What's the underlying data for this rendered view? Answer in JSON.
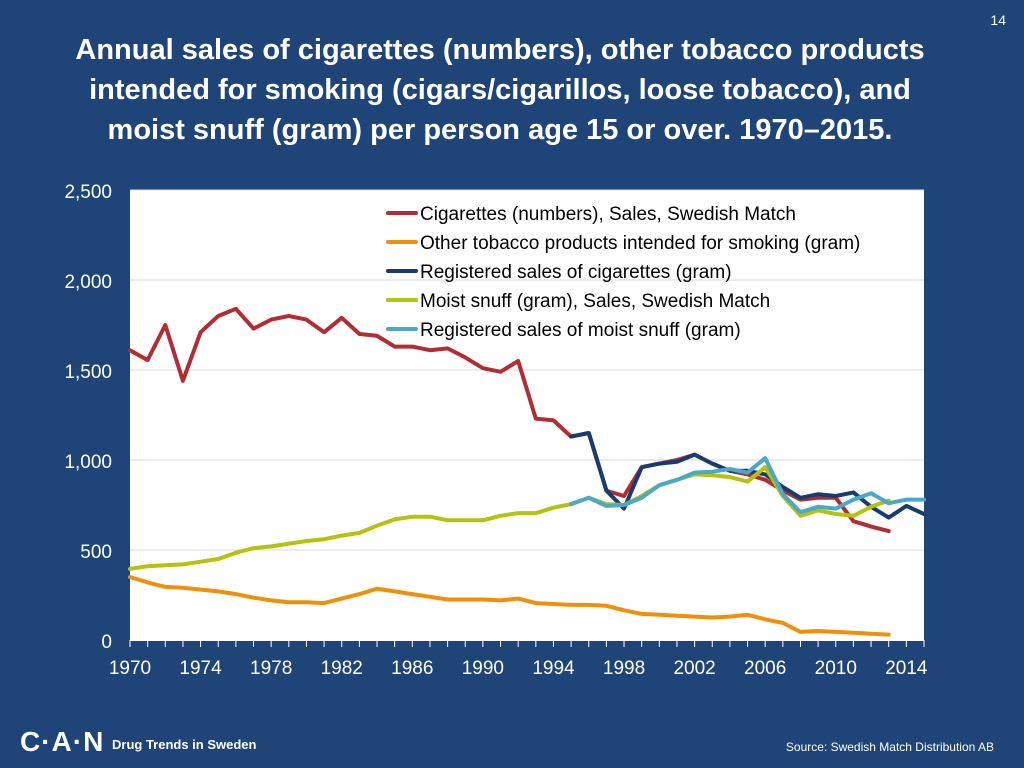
{
  "page_number": "14",
  "title_lines": [
    "Annual sales of cigarettes (numbers), other tobacco products",
    "intended for smoking (cigars/cigarillos, loose tobacco), and",
    "moist snuff (gram) per person age 15 or over. 1970–2015."
  ],
  "footer": {
    "logo": "C·A·N",
    "tagline": "Drug Trends in Sweden",
    "source": "Source: Swedish Match Distribution AB"
  },
  "colors": {
    "background": "#1f4578",
    "plot": "#ffffff",
    "cigarettes_sales": "#b22d33",
    "other_tobacco": "#f0900a",
    "registered_cigarettes": "#173d6e",
    "moist_snuff_sales": "#b5c20e",
    "registered_snuff": "#4aa8c8"
  },
  "chart_data": {
    "type": "line",
    "title": "Annual sales of cigarettes (numbers), other tobacco products intended for smoking (cigars/cigarillos, loose tobacco), and moist snuff (gram) per person age 15 or over. 1970–2015.",
    "xlabel": "",
    "ylabel": "",
    "xlim": [
      1970,
      2015
    ],
    "ylim": [
      0,
      2500
    ],
    "y_ticks": [
      0,
      500,
      1000,
      1500,
      2000,
      2500
    ],
    "y_tick_labels": [
      "0",
      "500",
      "1,000",
      "1,500",
      "2,000",
      "2,500"
    ],
    "x_ticks": [
      1970,
      1974,
      1978,
      1982,
      1986,
      1990,
      1994,
      1998,
      2002,
      2006,
      2010,
      2014
    ],
    "x_tick_labels": [
      "1970",
      "1974",
      "1978",
      "1982",
      "1986",
      "1990",
      "1994",
      "1998",
      "2002",
      "2006",
      "2010",
      "2014"
    ],
    "grid": "horizontal",
    "legend_position": "top-right",
    "series": [
      {
        "key": "cigarettes_sales",
        "name": "Cigarettes (numbers), Sales, Swedish Match",
        "x": [
          1970,
          1971,
          1972,
          1973,
          1974,
          1975,
          1976,
          1977,
          1978,
          1979,
          1980,
          1981,
          1982,
          1983,
          1984,
          1985,
          1986,
          1987,
          1988,
          1989,
          1990,
          1991,
          1992,
          1993,
          1994,
          1995,
          1996,
          1997,
          1998,
          1999,
          2000,
          2001,
          2002,
          2003,
          2004,
          2005,
          2006,
          2007,
          2008,
          2009,
          2010,
          2011,
          2012,
          2013
        ],
        "values": [
          1610,
          1555,
          1750,
          1440,
          1710,
          1800,
          1840,
          1730,
          1780,
          1800,
          1780,
          1710,
          1790,
          1700,
          1690,
          1630,
          1630,
          1610,
          1620,
          1570,
          1510,
          1490,
          1550,
          1230,
          1220,
          1130,
          1150,
          830,
          800,
          960,
          980,
          1000,
          1030,
          980,
          940,
          920,
          890,
          830,
          780,
          790,
          790,
          660,
          630,
          605
        ]
      },
      {
        "key": "other_tobacco",
        "name": "Other tobacco products intended for smoking (gram)",
        "x": [
          1970,
          1971,
          1972,
          1973,
          1974,
          1975,
          1976,
          1977,
          1978,
          1979,
          1980,
          1981,
          1982,
          1983,
          1984,
          1985,
          1986,
          1987,
          1988,
          1989,
          1990,
          1991,
          1992,
          1993,
          1994,
          1995,
          1996,
          1997,
          1998,
          1999,
          2000,
          2001,
          2002,
          2003,
          2004,
          2005,
          2006,
          2007,
          2008,
          2009,
          2010,
          2011,
          2012,
          2013
        ],
        "values": [
          350,
          320,
          295,
          290,
          280,
          270,
          255,
          235,
          220,
          210,
          210,
          205,
          230,
          255,
          285,
          270,
          255,
          240,
          225,
          225,
          225,
          220,
          230,
          205,
          200,
          195,
          195,
          190,
          165,
          145,
          140,
          135,
          130,
          125,
          130,
          140,
          115,
          95,
          45,
          50,
          45,
          40,
          35,
          30
        ]
      },
      {
        "key": "registered_cigarettes",
        "name": "Registered sales of cigarettes (gram)",
        "x": [
          1995,
          1996,
          1997,
          1998,
          1999,
          2000,
          2001,
          2002,
          2003,
          2004,
          2005,
          2006,
          2007,
          2008,
          2009,
          2010,
          2011,
          2012,
          2013,
          2014,
          2015
        ],
        "values": [
          1130,
          1150,
          830,
          730,
          960,
          980,
          990,
          1030,
          980,
          940,
          940,
          920,
          850,
          790,
          810,
          800,
          820,
          740,
          680,
          745,
          700
        ]
      },
      {
        "key": "moist_snuff_sales",
        "name": "Moist snuff (gram), Sales, Swedish Match",
        "x": [
          1970,
          1971,
          1972,
          1973,
          1974,
          1975,
          1976,
          1977,
          1978,
          1979,
          1980,
          1981,
          1982,
          1983,
          1984,
          1985,
          1986,
          1987,
          1988,
          1989,
          1990,
          1991,
          1992,
          1993,
          1994,
          1995,
          1996,
          1997,
          1998,
          1999,
          2000,
          2001,
          2002,
          2003,
          2004,
          2005,
          2006,
          2007,
          2008,
          2009,
          2010,
          2011,
          2012,
          2013
        ],
        "values": [
          395,
          410,
          415,
          420,
          435,
          450,
          485,
          510,
          520,
          535,
          550,
          560,
          580,
          595,
          635,
          670,
          685,
          685,
          665,
          665,
          665,
          690,
          705,
          705,
          735,
          755,
          790,
          755,
          750,
          800,
          860,
          890,
          920,
          915,
          905,
          880,
          960,
          800,
          690,
          720,
          700,
          690,
          740,
          775
        ]
      },
      {
        "key": "registered_snuff",
        "name": "Registered sales of moist snuff (gram)",
        "x": [
          1995,
          1996,
          1997,
          1998,
          1999,
          2000,
          2001,
          2002,
          2003,
          2004,
          2005,
          2006,
          2007,
          2008,
          2009,
          2010,
          2011,
          2012,
          2013,
          2014,
          2015
        ],
        "values": [
          755,
          790,
          745,
          750,
          790,
          860,
          890,
          930,
          935,
          950,
          930,
          1010,
          810,
          710,
          740,
          730,
          780,
          815,
          760,
          780,
          780
        ]
      }
    ]
  }
}
